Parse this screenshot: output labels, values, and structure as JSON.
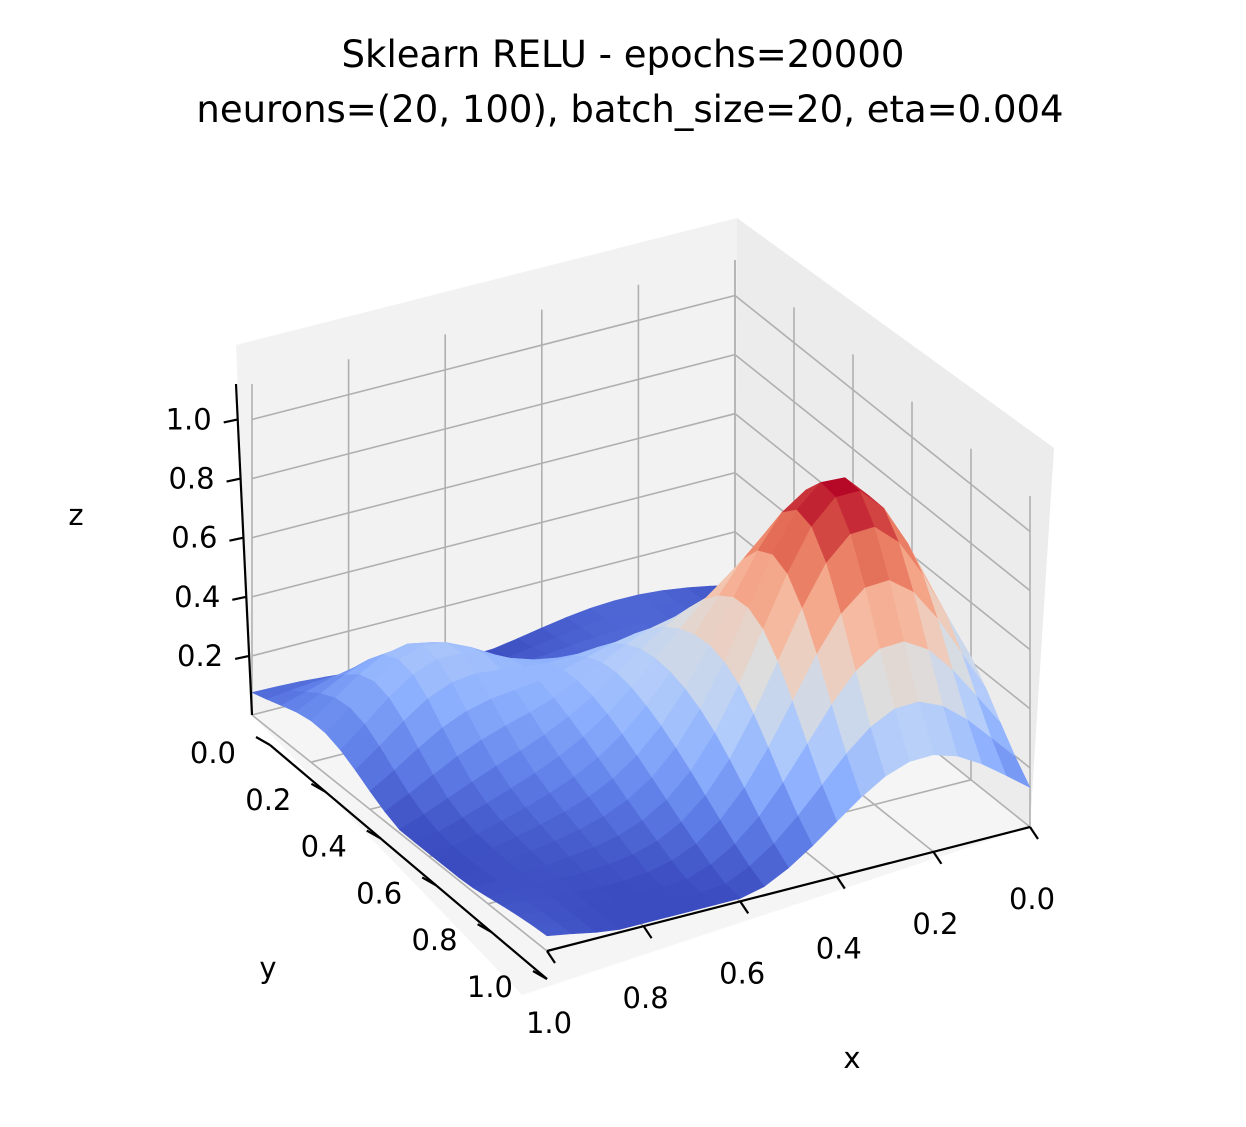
{
  "chart_data": {
    "type": "surface",
    "title_lines": [
      "Sklearn RELU - epochs=20000",
      "neurons=(20, 100), batch_size=20, eta=0.004"
    ],
    "xlabel": "x",
    "ylabel": "y",
    "zlabel": "z",
    "xlim": [
      0,
      1
    ],
    "ylim": [
      0,
      1
    ],
    "zlim": [
      0.0,
      1.12
    ],
    "x_ticks": [
      "0.0",
      "0.2",
      "0.4",
      "0.6",
      "0.8",
      "1.0"
    ],
    "y_ticks": [
      "0.0",
      "0.2",
      "0.4",
      "0.6",
      "0.8",
      "1.0"
    ],
    "z_ticks": [
      "0.2",
      "0.4",
      "0.6",
      "0.8",
      "1.0"
    ],
    "colormap": "coolwarm",
    "grid": true,
    "view": {
      "elev": 30,
      "azim": 60
    },
    "surface": {
      "grid_size": 20,
      "peak_value": 1.08,
      "peak_location": {
        "x": 0.22,
        "y": 0.72
      },
      "secondary_bump": {
        "x": 0.8,
        "y": 0.25,
        "z": 0.62
      },
      "min_value": 0.0
    }
  }
}
